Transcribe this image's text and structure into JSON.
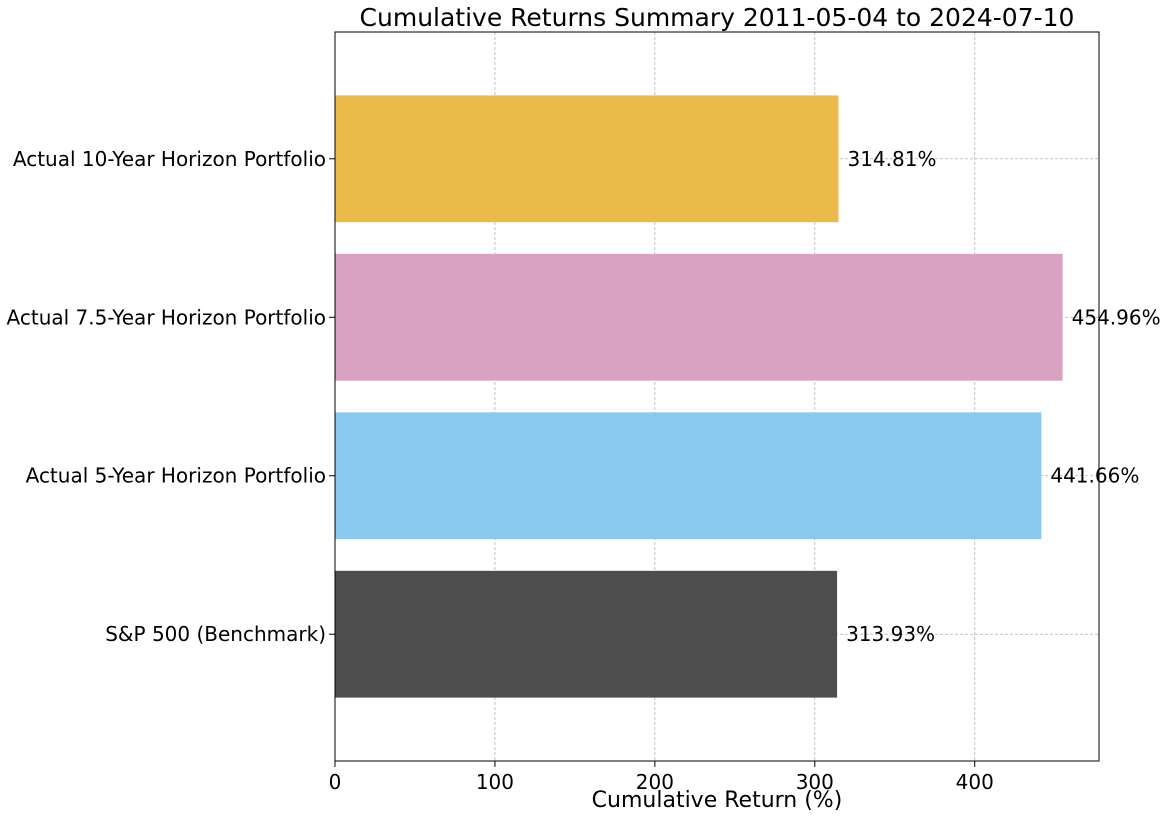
{
  "chart_data": {
    "type": "bar",
    "orientation": "horizontal",
    "title": "Cumulative Returns Summary 2011-05-04 to 2024-07-10",
    "xlabel": "Cumulative Return (%)",
    "ylabel": "",
    "categories": [
      "S&P 500 (Benchmark)",
      "Actual 5-Year Horizon Portfolio",
      "Actual 7.5-Year Horizon Portfolio",
      "Actual 10-Year Horizon Portfolio"
    ],
    "values": [
      313.93,
      441.66,
      454.96,
      314.81
    ],
    "value_labels": [
      "313.93%",
      "441.66%",
      "454.96%",
      "314.81%"
    ],
    "colors": [
      "#4d4d4d",
      "#89c9ef",
      "#d9a1c2",
      "#ecba4b"
    ],
    "xlim": [
      0,
      477.7
    ],
    "xticks": [
      0,
      100,
      200,
      300,
      400
    ],
    "xtick_labels": [
      "0",
      "100",
      "200",
      "300",
      "400"
    ],
    "grid": true
  }
}
